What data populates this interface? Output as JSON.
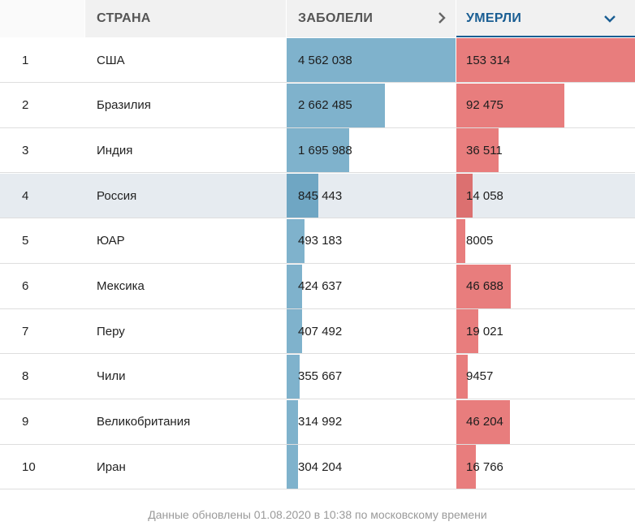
{
  "header": {
    "country_label": "СТРАНА",
    "cases_label": "ЗАБОЛЕЛИ",
    "deaths_label": "УМЕРЛИ",
    "cases_icon": "chevron-right-icon",
    "deaths_icon": "chevron-down-icon",
    "active_color": "#1a5e93"
  },
  "colors": {
    "cases_bar": "#7fb2cc",
    "deaths_bar": "#e87d7d",
    "highlight_row": "#e6ebf0"
  },
  "max_cases": 4562038,
  "max_deaths": 153314,
  "rows": [
    {
      "rank": "1",
      "country": "США",
      "cases": "4 562 038",
      "cases_value": 4562038,
      "deaths": "153 314",
      "deaths_value": 153314
    },
    {
      "rank": "2",
      "country": "Бразилия",
      "cases": "2 662 485",
      "cases_value": 2662485,
      "deaths": "92 475",
      "deaths_value": 92475
    },
    {
      "rank": "3",
      "country": "Индия",
      "cases": "1 695 988",
      "cases_value": 1695988,
      "deaths": "36 511",
      "deaths_value": 36511
    },
    {
      "rank": "4",
      "country": "Россия",
      "cases": "845 443",
      "cases_value": 845443,
      "deaths": "14 058",
      "deaths_value": 14058,
      "highlighted": true
    },
    {
      "rank": "5",
      "country": "ЮАР",
      "cases": "493 183",
      "cases_value": 493183,
      "deaths": "8005",
      "deaths_value": 8005
    },
    {
      "rank": "6",
      "country": "Мексика",
      "cases": "424 637",
      "cases_value": 424637,
      "deaths": "46 688",
      "deaths_value": 46688
    },
    {
      "rank": "7",
      "country": "Перу",
      "cases": "407 492",
      "cases_value": 407492,
      "deaths": "19 021",
      "deaths_value": 19021
    },
    {
      "rank": "8",
      "country": "Чили",
      "cases": "355 667",
      "cases_value": 355667,
      "deaths": "9457",
      "deaths_value": 9457
    },
    {
      "rank": "9",
      "country": "Великобритания",
      "cases": "314 992",
      "cases_value": 314992,
      "deaths": "46 204",
      "deaths_value": 46204
    },
    {
      "rank": "10",
      "country": "Иран",
      "cases": "304 204",
      "cases_value": 304204,
      "deaths": "16 766",
      "deaths_value": 16766
    }
  ],
  "footnote": "Данные обновлены 01.08.2020 в 10:38 по московскому времени"
}
